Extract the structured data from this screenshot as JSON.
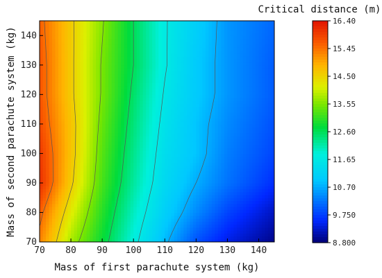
{
  "chart_data": {
    "type": "heatmap",
    "title": "Critical distance (m)",
    "xlabel": "Mass of first parachute system (kg)",
    "ylabel": "Mass of second parachute system (kg)",
    "xlim": [
      70,
      145
    ],
    "ylim": [
      70,
      145
    ],
    "x_ticks": [
      70,
      80,
      90,
      100,
      110,
      120,
      130,
      140
    ],
    "y_ticks": [
      70,
      80,
      90,
      100,
      110,
      120,
      130,
      140
    ],
    "colorbar": {
      "min": 8.8,
      "max": 16.4,
      "ticks": [
        "16.40",
        "15.45",
        "14.50",
        "13.55",
        "12.60",
        "11.65",
        "10.70",
        "9.750",
        "8.800"
      ]
    },
    "contour_levels": [
      15.45,
      14.5,
      13.55,
      12.6,
      11.65,
      10.7
    ],
    "x": [
      70,
      80,
      90,
      100,
      110,
      120,
      130,
      145
    ],
    "y": [
      70,
      80,
      90,
      100,
      110,
      120,
      130,
      145
    ],
    "values": [
      [
        15.3,
        13.8,
        12.8,
        11.8,
        10.8,
        9.9,
        9.4,
        8.9
      ],
      [
        15.6,
        14.2,
        13.0,
        12.0,
        11.1,
        10.4,
        9.8,
        9.2
      ],
      [
        16.1,
        14.6,
        13.2,
        12.2,
        11.3,
        10.7,
        10.2,
        9.6
      ],
      [
        16.0,
        14.7,
        13.3,
        12.3,
        11.4,
        10.9,
        10.3,
        9.8
      ],
      [
        15.8,
        14.7,
        13.4,
        12.4,
        11.5,
        10.9,
        10.4,
        9.9
      ],
      [
        15.7,
        14.6,
        13.5,
        12.5,
        11.6,
        11.0,
        10.5,
        10.0
      ],
      [
        15.7,
        14.6,
        13.5,
        12.6,
        11.7,
        11.0,
        10.5,
        10.0
      ],
      [
        15.6,
        14.6,
        13.6,
        12.6,
        11.7,
        11.1,
        10.5,
        10.1
      ]
    ]
  }
}
